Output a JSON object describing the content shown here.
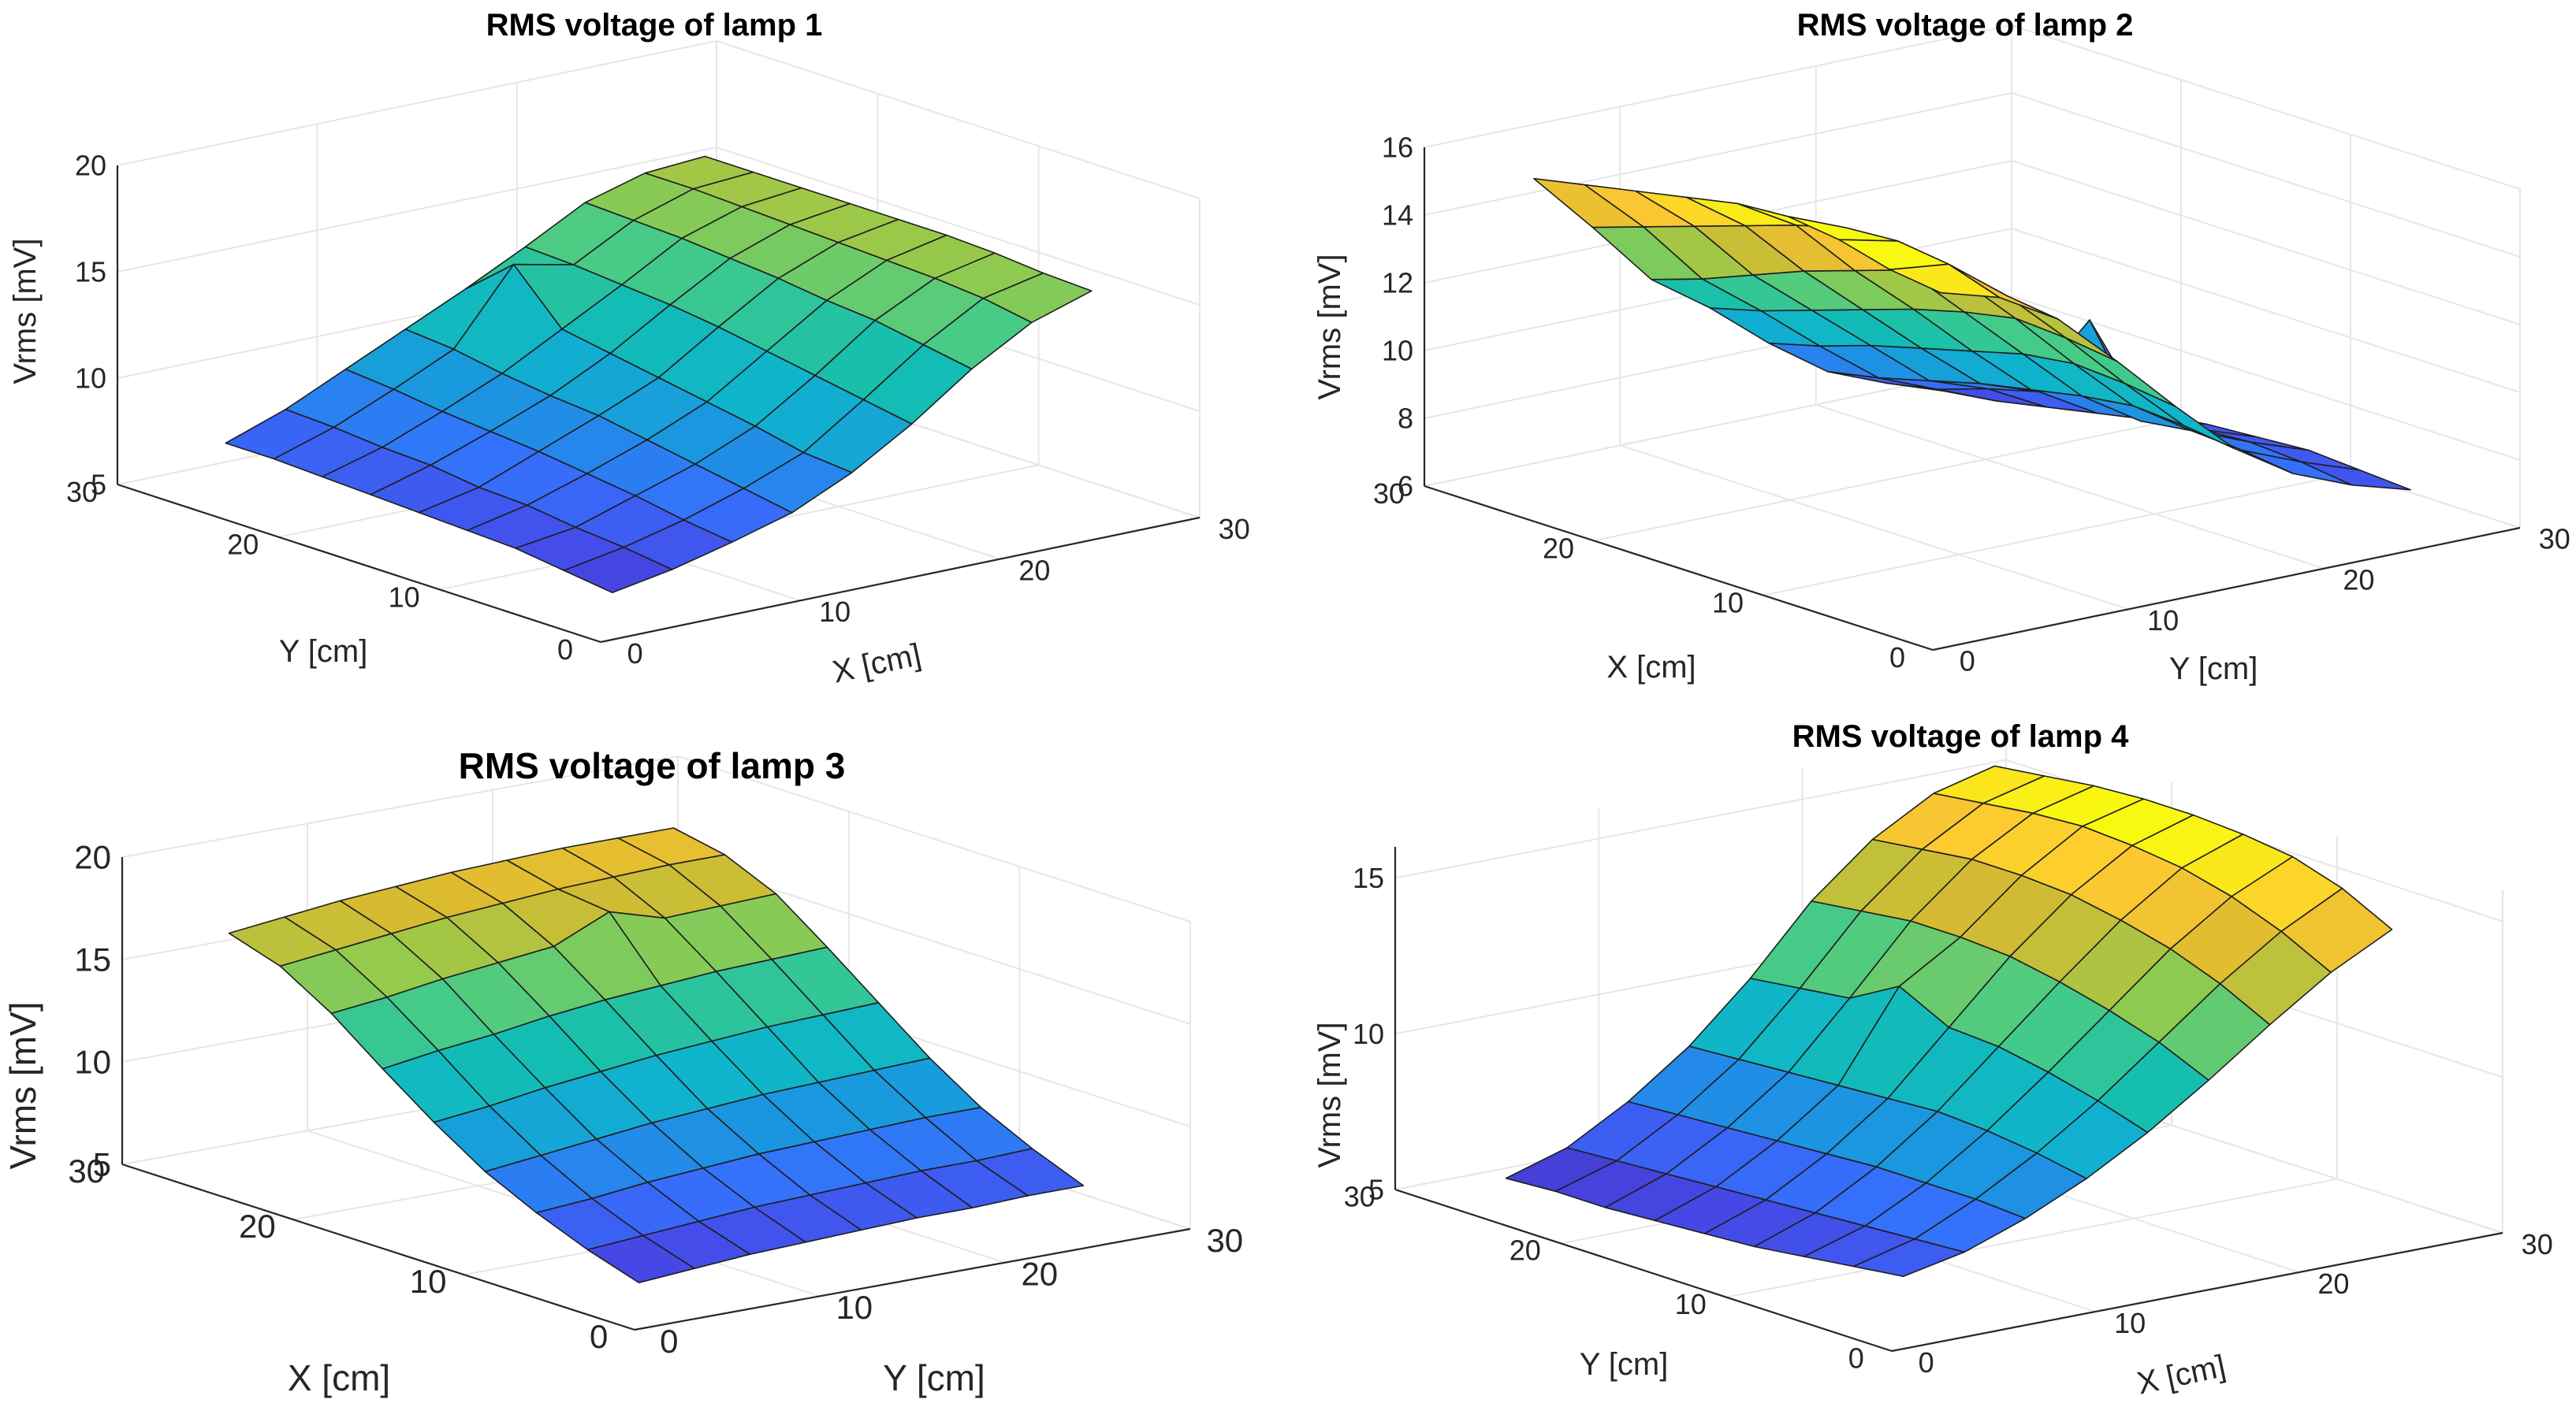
{
  "chart_data": [
    {
      "type": "surface",
      "title": "RMS voltage of lamp 1",
      "xlabel": "X [cm]",
      "ylabel": "Y [cm]",
      "zlabel": "Vrms [mV]",
      "xlim": [
        0,
        30
      ],
      "ylim": [
        0,
        30
      ],
      "zlim": [
        5,
        20
      ],
      "xticks": [
        "0",
        "10",
        "20",
        "30"
      ],
      "yticks": [
        "0",
        "10",
        "20",
        "30"
      ],
      "zticks": [
        "5",
        "10",
        "15",
        "20"
      ],
      "grid": true,
      "colormap": "parula",
      "x": [
        3,
        6,
        9,
        12,
        15,
        18,
        21,
        24,
        27
      ],
      "y": [
        3,
        6,
        9,
        12,
        15,
        18,
        21,
        24,
        27
      ],
      "z": [
        [
          6.0,
          6.5,
          7.2,
          8.0,
          9.3,
          11.0,
          13.0,
          14.6,
          15.5
        ],
        [
          6.3,
          6.8,
          7.5,
          8.4,
          9.5,
          11.4,
          13.4,
          15.0,
          15.6
        ],
        [
          6.6,
          7.0,
          7.9,
          8.8,
          10.0,
          11.8,
          13.8,
          15.2,
          15.8
        ],
        [
          6.7,
          7.3,
          8.2,
          9.2,
          10.4,
          12.2,
          14.0,
          15.3,
          15.9
        ],
        [
          6.8,
          7.4,
          8.5,
          9.6,
          10.8,
          12.6,
          14.3,
          15.4,
          15.9
        ],
        [
          6.9,
          7.7,
          8.7,
          9.8,
          11.2,
          12.9,
          14.5,
          15.5,
          15.9
        ],
        [
          7.0,
          7.8,
          8.9,
          10.1,
          11.6,
          13.1,
          14.7,
          15.6,
          15.9
        ],
        [
          7.1,
          8.0,
          9.2,
          10.5,
          13.9,
          13.3,
          14.8,
          15.7,
          15.9
        ],
        [
          7.1,
          8.1,
          9.4,
          10.7,
          12.0,
          13.4,
          14.9,
          15.7,
          15.9
        ]
      ]
    },
    {
      "type": "surface",
      "title": "RMS voltage of lamp 2",
      "xlabel": "X [cm]",
      "ylabel": "Y [cm]",
      "zlabel": "Vrms [mV]",
      "xlim": [
        0,
        30
      ],
      "ylim": [
        0,
        30
      ],
      "zlim": [
        6,
        16
      ],
      "xticks": [
        "0",
        "10",
        "20",
        "30"
      ],
      "yticks": [
        "0",
        "10",
        "20",
        "30"
      ],
      "zticks": [
        "6",
        "8",
        "10",
        "12",
        "14",
        "16"
      ],
      "grid": true,
      "colormap": "parula",
      "x": [
        3,
        6,
        9,
        12,
        15,
        18,
        21,
        24,
        27
      ],
      "y": [
        3,
        6,
        9,
        12,
        15,
        18,
        21,
        24,
        27
      ],
      "z": [
        [
          15.7,
          15.9,
          16.3,
          16.5,
          16.4,
          16.1,
          15.8,
          15.5,
          15.2
        ],
        [
          15.2,
          15.7,
          15.9,
          15.8,
          15.4,
          14.9,
          14.4,
          13.9,
          13.4
        ],
        [
          14.2,
          14.4,
          14.5,
          14.2,
          13.7,
          13.2,
          12.6,
          12.0,
          11.5
        ],
        [
          12.6,
          12.8,
          12.9,
          12.6,
          12.2,
          11.7,
          11.2,
          10.7,
          10.3
        ],
        [
          10.9,
          11.1,
          11.2,
          11.0,
          10.6,
          10.2,
          9.8,
          9.3,
          8.9
        ],
        [
          9.3,
          9.5,
          9.6,
          9.4,
          9.1,
          8.8,
          8.4,
          8.0,
          7.7
        ],
        [
          8.2,
          8.4,
          8.5,
          8.3,
          10.8,
          8.2,
          7.8,
          7.3,
          7.0
        ],
        [
          7.5,
          7.7,
          7.8,
          7.7,
          7.5,
          7.2,
          6.9,
          6.6,
          6.4
        ],
        [
          7.0,
          7.1,
          7.2,
          7.1,
          7.0,
          6.8,
          6.6,
          6.4,
          6.2
        ]
      ]
    },
    {
      "type": "surface",
      "title": "RMS voltage of lamp 3",
      "xlabel": "X [cm]",
      "ylabel": "Y [cm]",
      "zlabel": "Vrms [mV]",
      "xlim": [
        0,
        30
      ],
      "ylim": [
        0,
        30
      ],
      "zlim": [
        5,
        20
      ],
      "xticks": [
        "0",
        "10",
        "20",
        "30"
      ],
      "yticks": [
        "0",
        "10",
        "20",
        "30"
      ],
      "zticks": [
        "5",
        "10",
        "15",
        "20"
      ],
      "grid": true,
      "colormap": "parula",
      "x": [
        3,
        6,
        9,
        12,
        15,
        18,
        21,
        24,
        27
      ],
      "y": [
        3,
        6,
        9,
        12,
        15,
        18,
        21,
        24,
        27
      ],
      "z": [
        [
          6.0,
          6.8,
          7.8,
          9.0,
          10.6,
          12.4,
          14.3,
          15.8,
          16.6
        ],
        [
          6.2,
          7.0,
          8.0,
          9.3,
          10.9,
          12.8,
          14.6,
          16.1,
          16.9
        ],
        [
          6.4,
          7.2,
          8.3,
          9.6,
          11.3,
          13.1,
          15.0,
          16.4,
          17.2
        ],
        [
          6.5,
          7.4,
          8.5,
          9.9,
          11.6,
          13.5,
          15.3,
          16.7,
          17.4
        ],
        [
          6.6,
          7.5,
          8.7,
          10.1,
          11.9,
          13.8,
          15.6,
          16.9,
          17.6
        ],
        [
          6.7,
          7.6,
          8.8,
          10.3,
          12.1,
          14.0,
          16.8,
          17.1,
          17.7
        ],
        [
          6.7,
          7.7,
          8.9,
          10.4,
          12.3,
          14.2,
          16.0,
          17.2,
          17.8
        ],
        [
          6.8,
          7.7,
          9.0,
          10.5,
          12.4,
          14.3,
          16.1,
          17.3,
          17.8
        ],
        [
          6.8,
          7.8,
          9.0,
          10.6,
          12.5,
          14.4,
          16.2,
          17.3,
          17.8
        ]
      ]
    },
    {
      "type": "surface",
      "title": "RMS voltage of lamp 4",
      "xlabel": "X [cm]",
      "ylabel": "Y [cm]",
      "zlabel": "Vrms [mV]",
      "xlim": [
        0,
        30
      ],
      "ylim": [
        0,
        30
      ],
      "zlim": [
        5,
        16
      ],
      "xticks": [
        "0",
        "10",
        "20",
        "30"
      ],
      "yticks": [
        "0",
        "10",
        "20",
        "30"
      ],
      "zticks": [
        "5",
        "10",
        "15"
      ],
      "grid": true,
      "colormap": "parula",
      "x": [
        3,
        6,
        9,
        12,
        15,
        18,
        21,
        24,
        27
      ],
      "y": [
        3,
        6,
        9,
        12,
        15,
        18,
        21,
        24,
        27
      ],
      "z": [
        [
          6.5,
          6.9,
          7.6,
          8.5,
          9.6,
          10.9,
          12.3,
          13.6,
          14.6
        ],
        [
          6.3,
          6.8,
          7.7,
          8.8,
          10.1,
          11.6,
          13.1,
          14.4,
          15.4
        ],
        [
          6.1,
          6.7,
          7.7,
          9.0,
          10.5,
          12.1,
          13.7,
          15.0,
          15.9
        ],
        [
          5.9,
          6.6,
          7.7,
          9.1,
          10.8,
          12.5,
          14.1,
          15.4,
          16.1
        ],
        [
          5.8,
          6.5,
          7.6,
          9.0,
          10.9,
          12.8,
          14.4,
          15.6,
          16.2
        ],
        [
          5.7,
          6.4,
          7.5,
          8.9,
          11.7,
          12.9,
          14.5,
          15.7,
          16.2
        ],
        [
          5.6,
          6.3,
          7.4,
          8.8,
          10.8,
          12.9,
          14.5,
          15.6,
          16.1
        ],
        [
          5.6,
          6.2,
          7.3,
          8.7,
          10.6,
          12.7,
          14.3,
          15.4,
          15.9
        ],
        [
          5.5,
          6.1,
          7.2,
          8.6,
          10.4,
          12.5,
          14.1,
          15.2,
          15.7
        ]
      ]
    }
  ]
}
